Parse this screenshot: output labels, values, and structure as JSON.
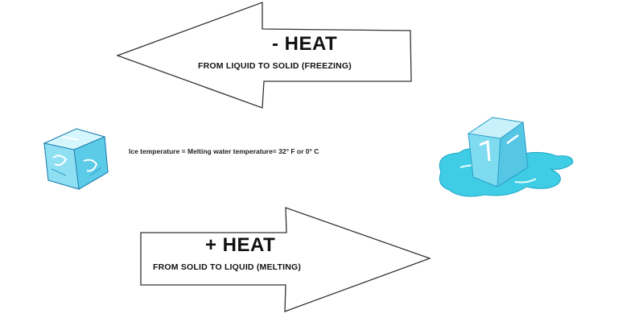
{
  "freezing": {
    "title": "- HEAT",
    "subtitle": "FROM LIQUID TO SOLID (FREEZING)"
  },
  "melting": {
    "title": "+ HEAT",
    "subtitle": "FROM SOLID TO LIQUID (MELTING)"
  },
  "equation": "Ice temperature = Melting water temperature= 32° F or 0° C",
  "colors": {
    "ice_light": "#c9f1fb",
    "ice_mid": "#7fdcf0",
    "ice_dark": "#2a9fc7",
    "water": "#3fcde6",
    "arrow_stroke": "#333333"
  }
}
